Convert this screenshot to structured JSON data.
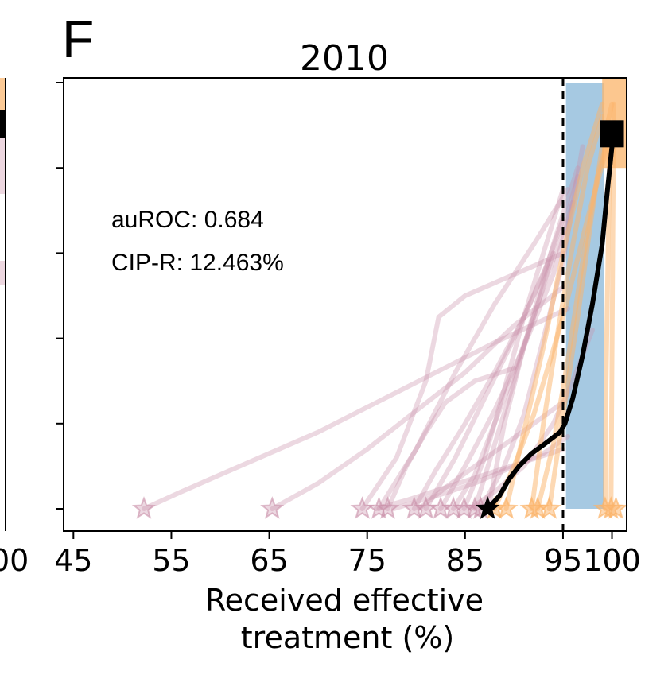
{
  "panel_letter": "F",
  "left_panel_partial_tick": "00",
  "chart_data": {
    "type": "line",
    "title": "2010",
    "xlabel_line1": "Received effective",
    "xlabel_line2": "treatment (%)",
    "xticks": [
      45,
      55,
      65,
      75,
      85,
      95,
      100
    ],
    "xtick_labels": [
      "45",
      "55",
      "65",
      "75",
      "85",
      "95",
      "100"
    ],
    "xlim": [
      44,
      101.5
    ],
    "ylim": [
      0,
      1.05
    ],
    "yticks": [
      0,
      0.2,
      0.4,
      0.6,
      0.8,
      1.0
    ],
    "grid": false,
    "threshold_line_x": 95,
    "annotations": [
      "auROC: 0.684",
      "CIP-R: 12.463%"
    ],
    "colors": {
      "pink": "#c990a8",
      "orange": "#fbb46a",
      "blue": "#a6c9e2",
      "main": "#000000"
    },
    "shaded_band": {
      "x0": 95.3,
      "x1": 99.2,
      "y0": 0,
      "y1": 1.0
    },
    "orange_band": {
      "x0": 99.0,
      "x1": 101.3,
      "y0": 0.8,
      "y1": 1.05
    },
    "pink_trajectories": [
      {
        "x": [
          52.2,
          56,
          63,
          70,
          76,
          82,
          88,
          95.5
        ],
        "y": [
          0,
          0.04,
          0.11,
          0.18,
          0.25,
          0.32,
          0.39,
          0.47
        ]
      },
      {
        "x": [
          65.3,
          70,
          75,
          80,
          85,
          90,
          95
        ],
        "y": [
          0,
          0.06,
          0.14,
          0.23,
          0.32,
          0.43,
          0.52
        ]
      },
      {
        "x": [
          74.5,
          78,
          81,
          82.3,
          85,
          90,
          95
        ],
        "y": [
          0,
          0.12,
          0.3,
          0.45,
          0.5,
          0.55,
          0.6
        ]
      },
      {
        "x": [
          76.2,
          80,
          84,
          88,
          92,
          95.5
        ],
        "y": [
          0,
          0.14,
          0.32,
          0.48,
          0.62,
          0.75
        ]
      },
      {
        "x": [
          77.1,
          79,
          81,
          83,
          86,
          90
        ],
        "y": [
          0,
          0.1,
          0.18,
          0.25,
          0.3,
          0.33
        ]
      },
      {
        "x": [
          79.8,
          82,
          85,
          88,
          91,
          93.5
        ],
        "y": [
          0,
          0.09,
          0.2,
          0.32,
          0.45,
          0.58
        ]
      },
      {
        "x": [
          81.0,
          84,
          87,
          90,
          93,
          95
        ],
        "y": [
          0,
          0.12,
          0.26,
          0.4,
          0.55,
          0.68
        ]
      },
      {
        "x": [
          82.5,
          85,
          88,
          91,
          94,
          96
        ],
        "y": [
          0,
          0.1,
          0.23,
          0.38,
          0.55,
          0.72
        ]
      },
      {
        "x": [
          83.8,
          86,
          88,
          90,
          92,
          94
        ],
        "y": [
          0,
          0.08,
          0.2,
          0.32,
          0.45,
          0.6
        ]
      },
      {
        "x": [
          84.9,
          87,
          89,
          91,
          93,
          95
        ],
        "y": [
          0,
          0.12,
          0.28,
          0.45,
          0.6,
          0.75
        ]
      },
      {
        "x": [
          86.0,
          88,
          90,
          92,
          94,
          96.5
        ],
        "y": [
          0,
          0.15,
          0.3,
          0.46,
          0.62,
          0.8
        ]
      },
      {
        "x": [
          86.6,
          89,
          91,
          93,
          95,
          97
        ],
        "y": [
          0,
          0.1,
          0.22,
          0.4,
          0.58,
          0.85
        ]
      },
      {
        "x": [
          80.3,
          83,
          86,
          89,
          92,
          95
        ],
        "y": [
          0,
          0.05,
          0.1,
          0.15,
          0.2,
          0.25
        ]
      },
      {
        "x": [
          77.7,
          82,
          86,
          90,
          93,
          95.5
        ],
        "y": [
          0,
          0.03,
          0.06,
          0.1,
          0.13,
          0.17
        ]
      },
      {
        "x": [
          85.5,
          88,
          91,
          94,
          96,
          98
        ],
        "y": [
          0,
          0.04,
          0.1,
          0.2,
          0.3,
          0.42
        ]
      },
      {
        "x": [
          87.4,
          89,
          91,
          93,
          95,
          96.5
        ],
        "y": [
          0,
          0.2,
          0.38,
          0.52,
          0.65,
          0.78
        ]
      },
      {
        "x": [
          75.9,
          79,
          83,
          87,
          91,
          95
        ],
        "y": [
          0,
          0.02,
          0.05,
          0.08,
          0.11,
          0.14
        ]
      }
    ],
    "pink_stars_x": [
      52.2,
      65.3,
      74.5,
      76.2,
      77.1,
      79.8,
      81.0,
      82.5,
      83.8,
      84.9,
      86.0,
      86.6
    ],
    "orange_trajectories": [
      {
        "x": [
          89.2,
          91,
          93,
          95,
          97,
          99
        ],
        "y": [
          0,
          0.18,
          0.38,
          0.6,
          0.8,
          0.95
        ]
      },
      {
        "x": [
          91.8,
          93,
          94.5,
          96,
          97.5,
          99
        ],
        "y": [
          0,
          0.2,
          0.42,
          0.62,
          0.8,
          0.92
        ]
      },
      {
        "x": [
          92.4,
          94,
          95.5,
          97,
          98.5,
          100
        ],
        "y": [
          0,
          0.15,
          0.35,
          0.58,
          0.78,
          0.9
        ]
      },
      {
        "x": [
          93.6,
          95,
          96.5,
          98,
          99,
          100
        ],
        "y": [
          0,
          0.22,
          0.45,
          0.7,
          0.85,
          0.95
        ]
      },
      {
        "x": [
          88.0,
          90,
          92,
          95,
          97.5,
          99.5
        ],
        "y": [
          0,
          0.1,
          0.22,
          0.45,
          0.68,
          0.85
        ]
      },
      {
        "x": [
          99.3,
          99.4,
          99.6,
          99.8
        ],
        "y": [
          0,
          0.3,
          0.6,
          0.9
        ]
      },
      {
        "x": [
          99.9,
          100.0,
          100.1,
          100.2
        ],
        "y": [
          0,
          0.35,
          0.7,
          0.95
        ]
      }
    ],
    "orange_stars_x": [
      88.0,
      89.2,
      91.8,
      92.4,
      93.6,
      99.3,
      99.9,
      100.4
    ],
    "main_trajectory": {
      "x": [
        87.3,
        88.5,
        89.5,
        90.5,
        91.8,
        93.0,
        94.7,
        95.2,
        96.0,
        97.0,
        98.0,
        99.0,
        99.5,
        100.0,
        100.0
      ],
      "y": [
        0,
        0.03,
        0.07,
        0.1,
        0.13,
        0.15,
        0.18,
        0.2,
        0.26,
        0.36,
        0.48,
        0.62,
        0.74,
        0.85,
        0.88
      ]
    },
    "main_star": {
      "x": 87.3,
      "y": 0
    },
    "main_square": {
      "x": 100.0,
      "y": 0.88
    }
  }
}
